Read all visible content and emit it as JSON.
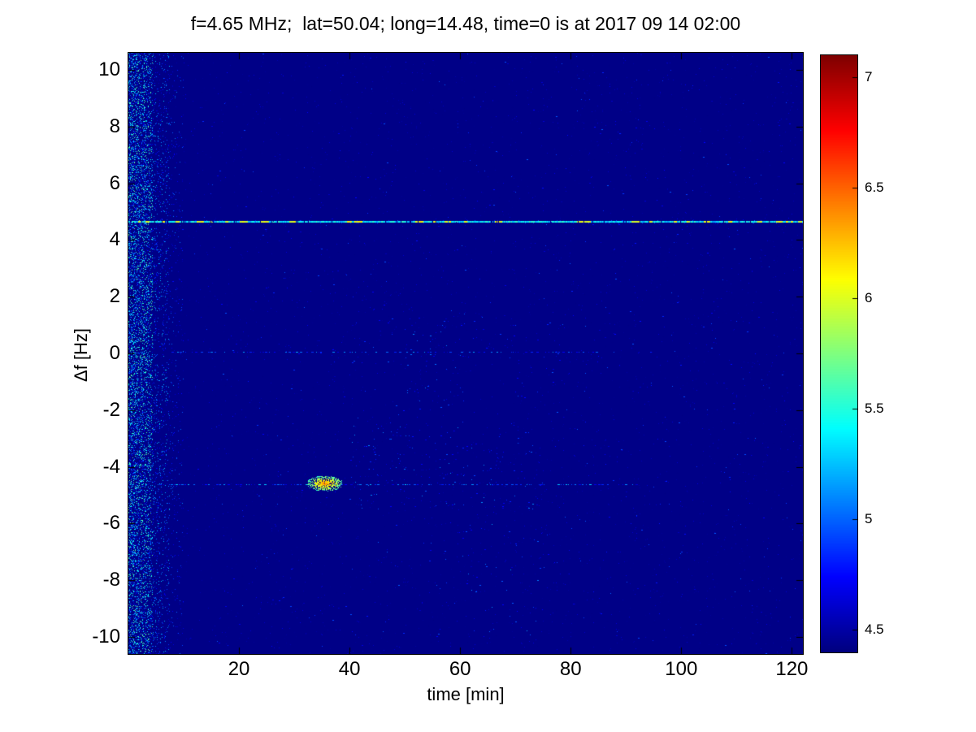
{
  "chart_data": {
    "type": "heatmap",
    "title": "f=4.65 MHz;  lat=50.04; long=14.48, time=0 is at 2017 09 14 02:00",
    "xlabel": "time [min]",
    "ylabel": "Δf [Hz]",
    "x_range": [
      0,
      122
    ],
    "y_range": [
      -10.6,
      10.6
    ],
    "x_ticks": [
      20,
      40,
      60,
      80,
      100,
      120
    ],
    "y_ticks": [
      10,
      8,
      6,
      4,
      2,
      0,
      -2,
      -4,
      -6,
      -8,
      -10
    ],
    "colormap": "jet",
    "color_range": [
      4.4,
      7.1
    ],
    "colorbar_ticks": [
      7,
      6.5,
      6,
      5.5,
      5,
      4.5
    ],
    "background_value": 4.42,
    "grid": false,
    "features": [
      {
        "kind": "noise_band",
        "label": "startup-noise-band",
        "t": [
          0,
          4.5
        ],
        "df": [
          -10.6,
          10.6
        ],
        "density": 0.32,
        "value": [
          4.55,
          5.7
        ]
      },
      {
        "kind": "noise_band",
        "label": "startup-noise-fringe",
        "t": [
          4.5,
          7.5
        ],
        "df": [
          -10.6,
          10.6
        ],
        "density": 0.1,
        "value": [
          4.5,
          5.3
        ]
      },
      {
        "kind": "noise_band",
        "label": "startup-noise-tail",
        "t": [
          7.5,
          10
        ],
        "df": [
          -10.6,
          10.6
        ],
        "density": 0.025,
        "value": [
          4.5,
          5.1
        ]
      },
      {
        "kind": "line",
        "label": "doppler-line-upper",
        "df": 4.65,
        "t": [
          0,
          122
        ],
        "value": [
          5.15,
          6.15
        ],
        "style": "bright-dashed"
      },
      {
        "kind": "line",
        "label": "carrier-zero-line",
        "df": 0.05,
        "t": [
          7,
          85
        ],
        "value": [
          4.6,
          5.2
        ],
        "style": "sparse",
        "density": 0.22
      },
      {
        "kind": "line",
        "label": "doppler-line-lower",
        "df": -4.6,
        "t": [
          5,
          92
        ],
        "value": [
          4.6,
          5.3
        ],
        "style": "sparse",
        "density": 0.3
      },
      {
        "kind": "blob",
        "label": "strong-echo-blob",
        "t": [
          32.2,
          38.8
        ],
        "df": [
          -4.85,
          -4.3
        ],
        "value": [
          5.4,
          6.45
        ],
        "density": 0.9
      },
      {
        "kind": "scatter",
        "label": "background-speckle",
        "t": [
          8,
          122
        ],
        "df": [
          -10.6,
          10.6
        ],
        "density": 0.0015,
        "value": [
          4.5,
          5.0
        ]
      },
      {
        "kind": "scatter",
        "label": "mid-speckle-cluster",
        "t": [
          40,
          75
        ],
        "df": [
          -5.5,
          -2.5
        ],
        "density": 0.007,
        "value": [
          4.5,
          5.15
        ]
      },
      {
        "kind": "scatter",
        "label": "upper-speckle-cluster",
        "t": [
          50,
          62
        ],
        "df": [
          -2,
          1.5
        ],
        "density": 0.006,
        "value": [
          4.5,
          5.1
        ]
      },
      {
        "kind": "scatter",
        "label": "lower-speckle-cluster",
        "t": [
          60,
          75
        ],
        "df": [
          -10,
          -6
        ],
        "density": 0.004,
        "value": [
          4.5,
          5.2
        ]
      }
    ]
  }
}
